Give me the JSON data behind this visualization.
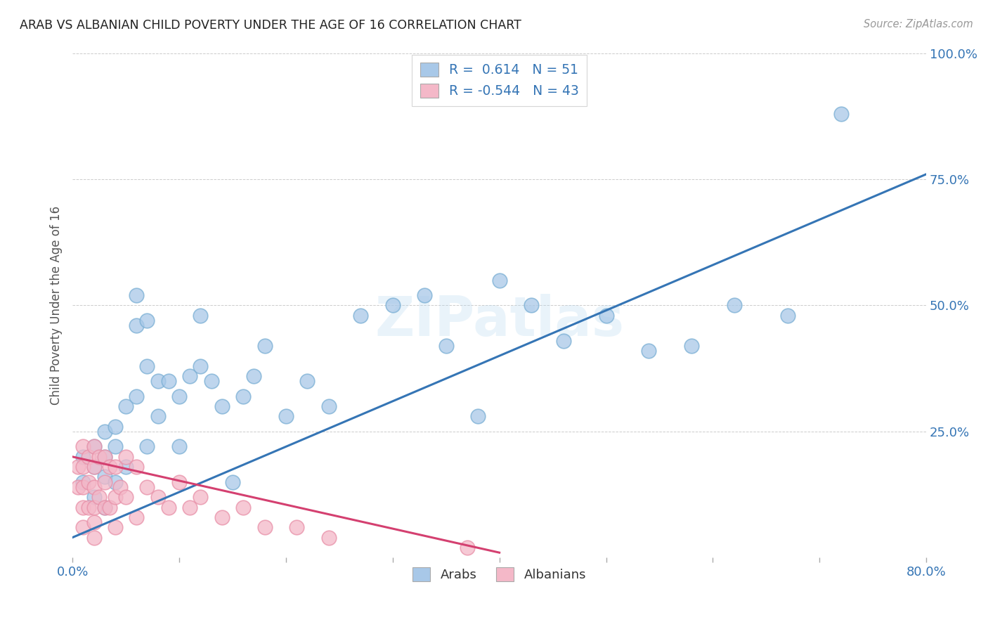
{
  "title": "ARAB VS ALBANIAN CHILD POVERTY UNDER THE AGE OF 16 CORRELATION CHART",
  "source": "Source: ZipAtlas.com",
  "ylabel": "Child Poverty Under the Age of 16",
  "xlim": [
    0.0,
    0.8
  ],
  "ylim": [
    0.0,
    1.0
  ],
  "yticks": [
    0.0,
    0.25,
    0.5,
    0.75,
    1.0
  ],
  "yticklabels": [
    "",
    "25.0%",
    "50.0%",
    "75.0%",
    "100.0%"
  ],
  "xtick_positions": [
    0.0,
    0.1,
    0.2,
    0.3,
    0.4,
    0.5,
    0.6,
    0.7,
    0.8
  ],
  "xticklabels": [
    "0.0%",
    "",
    "",
    "",
    "",
    "",
    "",
    "",
    "80.0%"
  ],
  "blue_color": "#a8c8e8",
  "blue_edge_color": "#7aafd4",
  "pink_color": "#f4b8c8",
  "pink_edge_color": "#e890a8",
  "blue_line_color": "#3575b5",
  "pink_line_color": "#d44070",
  "legend_R_arab": "0.614",
  "legend_N_arab": "51",
  "legend_R_albanian": "-0.544",
  "legend_N_albanian": "43",
  "watermark": "ZIPatlas",
  "arab_x": [
    0.01,
    0.01,
    0.02,
    0.02,
    0.02,
    0.03,
    0.03,
    0.03,
    0.03,
    0.04,
    0.04,
    0.04,
    0.05,
    0.05,
    0.06,
    0.06,
    0.06,
    0.07,
    0.07,
    0.07,
    0.08,
    0.08,
    0.09,
    0.1,
    0.1,
    0.11,
    0.12,
    0.12,
    0.13,
    0.14,
    0.15,
    0.16,
    0.17,
    0.18,
    0.2,
    0.22,
    0.24,
    0.27,
    0.3,
    0.33,
    0.35,
    0.38,
    0.4,
    0.43,
    0.46,
    0.5,
    0.54,
    0.58,
    0.62,
    0.67,
    0.72
  ],
  "arab_y": [
    0.2,
    0.15,
    0.22,
    0.18,
    0.12,
    0.25,
    0.2,
    0.16,
    0.1,
    0.26,
    0.22,
    0.15,
    0.3,
    0.18,
    0.52,
    0.46,
    0.32,
    0.47,
    0.38,
    0.22,
    0.35,
    0.28,
    0.35,
    0.32,
    0.22,
    0.36,
    0.48,
    0.38,
    0.35,
    0.3,
    0.15,
    0.32,
    0.36,
    0.42,
    0.28,
    0.35,
    0.3,
    0.48,
    0.5,
    0.52,
    0.42,
    0.28,
    0.55,
    0.5,
    0.43,
    0.48,
    0.41,
    0.42,
    0.5,
    0.48,
    0.88
  ],
  "albanian_x": [
    0.005,
    0.005,
    0.01,
    0.01,
    0.01,
    0.01,
    0.01,
    0.015,
    0.015,
    0.015,
    0.02,
    0.02,
    0.02,
    0.02,
    0.02,
    0.02,
    0.025,
    0.025,
    0.03,
    0.03,
    0.03,
    0.035,
    0.035,
    0.04,
    0.04,
    0.04,
    0.045,
    0.05,
    0.05,
    0.06,
    0.06,
    0.07,
    0.08,
    0.09,
    0.1,
    0.11,
    0.12,
    0.14,
    0.16,
    0.18,
    0.21,
    0.24,
    0.37
  ],
  "albanian_y": [
    0.18,
    0.14,
    0.22,
    0.18,
    0.14,
    0.1,
    0.06,
    0.2,
    0.15,
    0.1,
    0.22,
    0.18,
    0.14,
    0.1,
    0.07,
    0.04,
    0.2,
    0.12,
    0.2,
    0.15,
    0.1,
    0.18,
    0.1,
    0.18,
    0.12,
    0.06,
    0.14,
    0.2,
    0.12,
    0.18,
    0.08,
    0.14,
    0.12,
    0.1,
    0.15,
    0.1,
    0.12,
    0.08,
    0.1,
    0.06,
    0.06,
    0.04,
    0.02
  ],
  "blue_line_x0": 0.0,
  "blue_line_y0": 0.04,
  "blue_line_x1": 0.8,
  "blue_line_y1": 0.76,
  "pink_line_x0": 0.0,
  "pink_line_y0": 0.2,
  "pink_line_x1": 0.4,
  "pink_line_y1": 0.01,
  "background_color": "#ffffff",
  "grid_color": "#cccccc",
  "title_color": "#333333",
  "tick_color": "#3575b5"
}
